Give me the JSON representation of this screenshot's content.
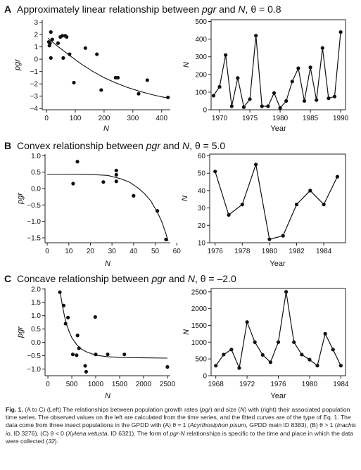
{
  "panels": [
    {
      "letter": "A",
      "title_pre": "Approximately linear relationship between ",
      "title_pgr": "pgr",
      "title_mid": " and ",
      "title_N": "N",
      "title_post": ", θ = 0.8"
    },
    {
      "letter": "B",
      "title_pre": "Convex relationship between ",
      "title_pgr": "pgr",
      "title_mid": " and ",
      "title_N": "N",
      "title_post": ", θ = 5.0"
    },
    {
      "letter": "C",
      "title_pre": "Concave relationship between ",
      "title_pgr": "pgr",
      "title_mid": " and ",
      "title_N": "N",
      "title_post": ", θ = –2.0"
    }
  ],
  "chart_data": [
    {
      "id": "A-left",
      "type": "scatter",
      "xlabel": "N",
      "ylabel": "pgr",
      "xlim": [
        -15,
        430
      ],
      "ylim": [
        -4.1,
        3.2
      ],
      "xticks": [
        0,
        100,
        200,
        300,
        400
      ],
      "yticks": [
        3,
        2,
        1,
        0,
        -1,
        -2,
        -3,
        -4
      ],
      "points": [
        [
          8,
          1.4
        ],
        [
          10,
          1.1
        ],
        [
          12,
          1.3
        ],
        [
          15,
          2.2
        ],
        [
          15,
          0.1
        ],
        [
          20,
          1.6
        ],
        [
          40,
          1.3
        ],
        [
          48,
          1.8
        ],
        [
          55,
          1.9
        ],
        [
          58,
          0.1
        ],
        [
          65,
          1.9
        ],
        [
          70,
          1.8
        ],
        [
          80,
          0.4
        ],
        [
          95,
          -1.9
        ],
        [
          135,
          0.9
        ],
        [
          175,
          0.4
        ],
        [
          190,
          -2.5
        ],
        [
          240,
          -1.5
        ],
        [
          248,
          -1.5
        ],
        [
          320,
          -2.8
        ],
        [
          350,
          -1.7
        ],
        [
          422,
          -3.1
        ]
      ],
      "fit": [
        [
          5,
          1.7
        ],
        [
          40,
          1.02
        ],
        [
          80,
          0.3
        ],
        [
          120,
          -0.38
        ],
        [
          160,
          -0.98
        ],
        [
          200,
          -1.5
        ],
        [
          240,
          -1.92
        ],
        [
          280,
          -2.28
        ],
        [
          320,
          -2.58
        ],
        [
          360,
          -2.84
        ],
        [
          400,
          -3.05
        ],
        [
          422,
          -3.15
        ]
      ]
    },
    {
      "id": "A-right",
      "type": "line",
      "xlabel": "Year",
      "ylabel": "N",
      "xlim": [
        1968.6,
        1990.8
      ],
      "ylim": [
        0,
        510
      ],
      "xticks": [
        1970,
        1975,
        1980,
        1985,
        1990
      ],
      "yticks": [
        0,
        100,
        200,
        300,
        400,
        500
      ],
      "x": [
        1969,
        1970,
        1971,
        1972,
        1973,
        1974,
        1975,
        1976,
        1977,
        1978,
        1979,
        1980,
        1981,
        1982,
        1983,
        1984,
        1985,
        1986,
        1987,
        1988,
        1989,
        1990
      ],
      "y": [
        80,
        130,
        310,
        20,
        180,
        15,
        60,
        420,
        20,
        20,
        95,
        10,
        50,
        160,
        235,
        50,
        240,
        55,
        350,
        65,
        75,
        440
      ]
    },
    {
      "id": "B-left",
      "type": "scatter",
      "xlabel": "N",
      "ylabel": "pgr",
      "xlim": [
        -1,
        57
      ],
      "ylim": [
        -1.65,
        1.05
      ],
      "xticks": [
        0,
        10,
        20,
        30,
        40,
        50,
        60
      ],
      "yticks": [
        1.0,
        0.5,
        0.0,
        -0.5,
        -1.0,
        -1.5
      ],
      "points": [
        [
          12,
          0.15
        ],
        [
          14,
          0.82
        ],
        [
          26,
          0.2
        ],
        [
          32,
          0.55
        ],
        [
          32,
          0.22
        ],
        [
          32,
          0.42
        ],
        [
          40,
          -0.22
        ],
        [
          51,
          -0.68
        ],
        [
          55,
          -1.55
        ]
      ],
      "fit": [
        [
          0,
          0.44
        ],
        [
          10,
          0.44
        ],
        [
          20,
          0.43
        ],
        [
          28,
          0.4
        ],
        [
          34,
          0.3
        ],
        [
          38,
          0.2
        ],
        [
          42,
          0.02
        ],
        [
          45,
          -0.15
        ],
        [
          48,
          -0.38
        ],
        [
          51,
          -0.72
        ],
        [
          53,
          -1.0
        ],
        [
          55,
          -1.38
        ],
        [
          56,
          -1.6
        ]
      ]
    },
    {
      "id": "B-right",
      "type": "line",
      "xlabel": "Year",
      "ylabel": "N",
      "xlim": [
        1975.6,
        1985.6
      ],
      "ylim": [
        10,
        61
      ],
      "xticks": [
        1976,
        1978,
        1980,
        1982,
        1984
      ],
      "yticks": [
        10,
        20,
        30,
        40,
        50,
        60
      ],
      "x": [
        1976,
        1977,
        1978,
        1979,
        1980,
        1981,
        1982,
        1983,
        1984,
        1985
      ],
      "y": [
        51,
        26,
        32,
        55,
        12,
        14,
        32,
        40,
        32,
        48
      ]
    },
    {
      "id": "C-left",
      "type": "scatter",
      "xlabel": "N",
      "ylabel": "pgr",
      "xlim": [
        -60,
        2560
      ],
      "ylim": [
        -1.25,
        2.02
      ],
      "xticks": [
        0,
        500,
        1000,
        1500,
        2000,
        2500
      ],
      "yticks": [
        2.0,
        1.5,
        1.0,
        0.5,
        0.0,
        -0.5,
        -1.0
      ],
      "points": [
        [
          250,
          1.88
        ],
        [
          330,
          1.38
        ],
        [
          370,
          0.7
        ],
        [
          420,
          0.93
        ],
        [
          520,
          -0.45
        ],
        [
          600,
          -0.48
        ],
        [
          620,
          0.26
        ],
        [
          650,
          -0.22
        ],
        [
          780,
          -0.88
        ],
        [
          800,
          -1.1
        ],
        [
          990,
          0.95
        ],
        [
          1000,
          -0.45
        ],
        [
          1250,
          -0.45
        ],
        [
          1600,
          -0.45
        ],
        [
          2500,
          -0.92
        ]
      ],
      "fit": [
        [
          250,
          1.95
        ],
        [
          300,
          1.4
        ],
        [
          350,
          0.95
        ],
        [
          400,
          0.62
        ],
        [
          450,
          0.38
        ],
        [
          500,
          0.18
        ],
        [
          600,
          -0.08
        ],
        [
          700,
          -0.25
        ],
        [
          800,
          -0.35
        ],
        [
          1000,
          -0.48
        ],
        [
          1250,
          -0.54
        ],
        [
          1600,
          -0.57
        ],
        [
          2000,
          -0.58
        ],
        [
          2500,
          -0.59
        ]
      ]
    },
    {
      "id": "C-right",
      "type": "line",
      "xlabel": "Year",
      "ylabel": "N",
      "xlim": [
        1967.4,
        1984.6
      ],
      "ylim": [
        0,
        2600
      ],
      "xticks": [
        1968,
        1972,
        1976,
        1980,
        1984
      ],
      "yticks": [
        0,
        500,
        1000,
        1500,
        2000,
        2500
      ],
      "x": [
        1968,
        1969,
        1970,
        1971,
        1972,
        1973,
        1974,
        1975,
        1976,
        1977,
        1978,
        1979,
        1980,
        1981,
        1982,
        1983,
        1984
      ],
      "y": [
        300,
        630,
        780,
        230,
        1600,
        1000,
        620,
        400,
        1000,
        2500,
        1000,
        630,
        480,
        300,
        1250,
        780,
        300
      ]
    }
  ],
  "caption": {
    "head": "Fig. 1.",
    "parts": [
      {
        "t": " (A to C) (Left) The relationships between population growth rates (",
        "i": false
      },
      {
        "t": "pgr",
        "i": true
      },
      {
        "t": ") and size (",
        "i": false
      },
      {
        "t": "N",
        "i": true
      },
      {
        "t": ") with (right) their associated population time series. The observed values on the left are calculated from the time series, and the fitted curves are of the type of Eq. 1. The data come from three insect populations in the GPDD with (A) θ ≈ 1 (",
        "i": false
      },
      {
        "t": "Acyrthosiphon pisum",
        "i": true
      },
      {
        "t": ", GPDD main ID 8383), (B) θ > 1 (",
        "i": false
      },
      {
        "t": "Inachis io",
        "i": true
      },
      {
        "t": ", ID 3276), (C) θ < 0 (",
        "i": false
      },
      {
        "t": "Xylena vetusta",
        "i": true
      },
      {
        "t": ", ID 6321). The form of ",
        "i": false
      },
      {
        "t": "pgr-N",
        "i": true
      },
      {
        "t": " relationships is specific to the time and place in which the data were collected (",
        "i": false
      },
      {
        "t": "32",
        "i": true
      },
      {
        "t": ").",
        "i": false
      }
    ]
  }
}
